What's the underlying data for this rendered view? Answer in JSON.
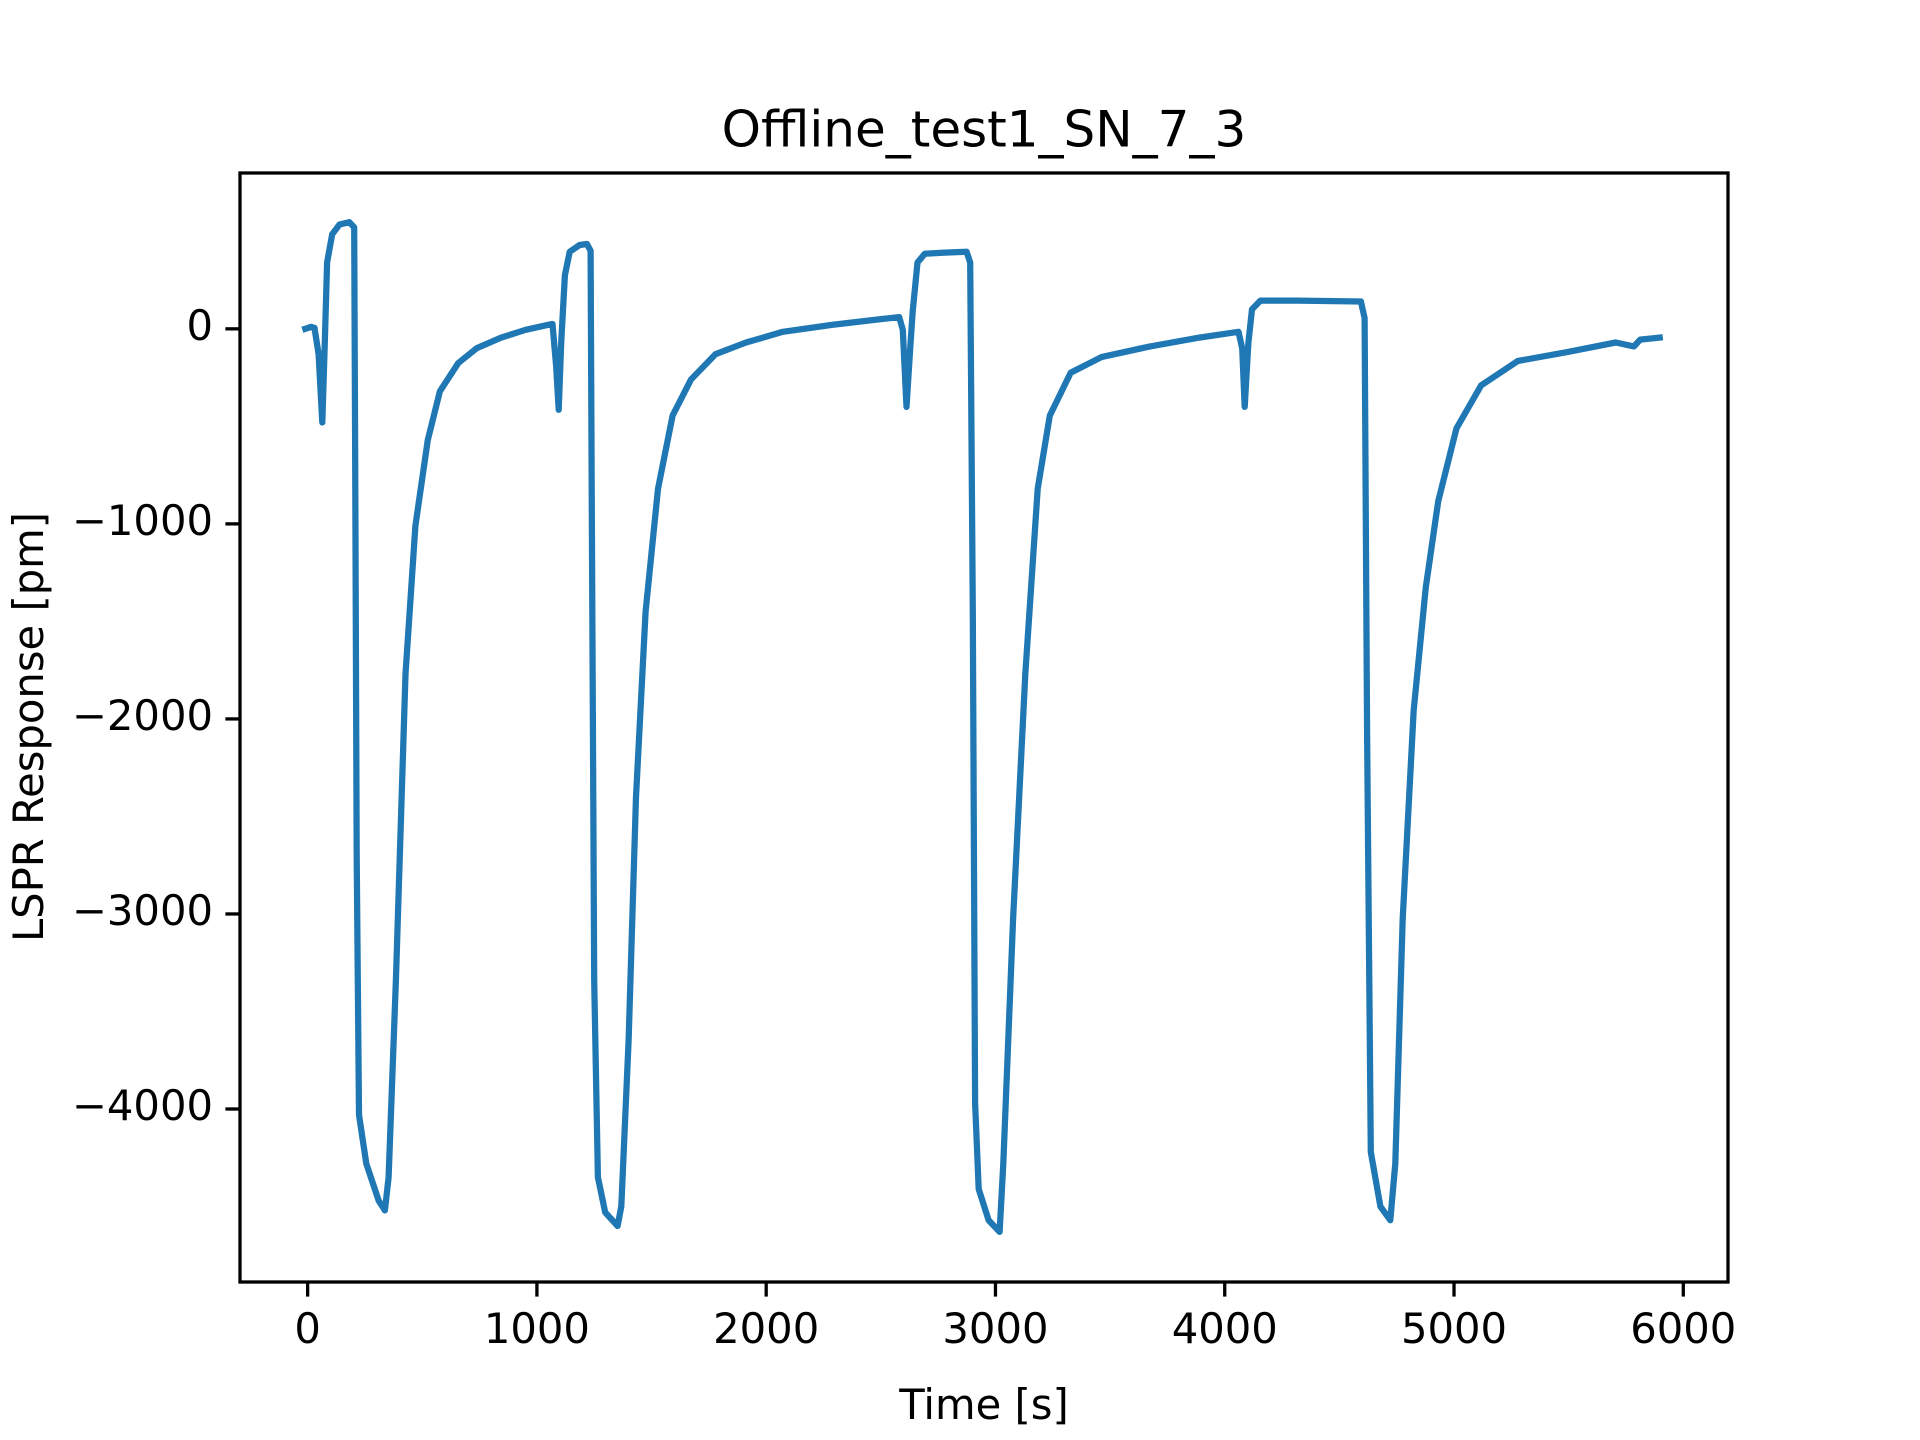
{
  "chart_data": {
    "type": "line",
    "title": "Offline_test1_SN_7_3",
    "x_label": "Time [s]",
    "y_label": "LSPR Response [pm]",
    "xlim": [
      -295,
      6195
    ],
    "ylim": [
      -4887,
      799
    ],
    "xticks": [
      0,
      1000,
      2000,
      3000,
      4000,
      5000,
      6000
    ],
    "yticks": [
      {
        "value": -4000,
        "label": "−4000"
      },
      {
        "value": -3000,
        "label": "−3000"
      },
      {
        "value": -2000,
        "label": "−2000"
      },
      {
        "value": -1000,
        "label": "−1000"
      },
      0
    ],
    "grid": false,
    "series": [
      {
        "color": "#1f77b4",
        "x": [
          -10,
          15,
          30,
          48,
          64,
          75,
          85,
          107,
          139,
          182,
          203,
          208,
          214,
          224,
          256,
          310,
          337,
          353,
          385,
          427,
          470,
          524,
          577,
          657,
          737,
          844,
          951,
          1047,
          1068,
          1084,
          1095,
          1106,
          1122,
          1143,
          1186,
          1218,
          1234,
          1239,
          1250,
          1266,
          1298,
          1352,
          1368,
          1400,
          1432,
          1474,
          1528,
          1592,
          1672,
          1779,
          1912,
          2073,
          2286,
          2500,
          2580,
          2596,
          2612,
          2628,
          2639,
          2660,
          2692,
          2767,
          2874,
          2890,
          2901,
          2911,
          2927,
          2970,
          3018,
          3034,
          3077,
          3130,
          3184,
          3237,
          3328,
          3462,
          3675,
          3889,
          4060,
          4076,
          4087,
          4103,
          4119,
          4156,
          4316,
          4594,
          4610,
          4621,
          4637,
          4679,
          4722,
          4744,
          4776,
          4824,
          4877,
          4931,
          5011,
          5118,
          5278,
          5491,
          5705,
          5785,
          5812,
          5897
        ],
        "values": [
          0,
          10,
          5,
          -130,
          -480,
          -70,
          340,
          485,
          535,
          547,
          520,
          -820,
          -2710,
          -4030,
          -4280,
          -4470,
          -4520,
          -4350,
          -3340,
          -1770,
          -1010,
          -570,
          -320,
          -175,
          -100,
          -45,
          -5,
          20,
          25,
          -195,
          -415,
          -70,
          275,
          395,
          430,
          435,
          400,
          -820,
          -3340,
          -4350,
          -4530,
          -4600,
          -4500,
          -3650,
          -2400,
          -1450,
          -820,
          -445,
          -260,
          -130,
          -70,
          -15,
          20,
          50,
          60,
          -5,
          -400,
          -100,
          90,
          340,
          385,
          390,
          395,
          340,
          -1450,
          -3970,
          -4410,
          -4570,
          -4630,
          -4280,
          -3025,
          -1770,
          -820,
          -445,
          -225,
          -145,
          -90,
          -45,
          -15,
          -100,
          -400,
          -70,
          100,
          145,
          145,
          140,
          55,
          -2080,
          -4220,
          -4500,
          -4570,
          -4280,
          -3025,
          -1955,
          -1325,
          -885,
          -510,
          -290,
          -165,
          -120,
          -70,
          -90,
          -55,
          -45
        ]
      }
    ]
  }
}
